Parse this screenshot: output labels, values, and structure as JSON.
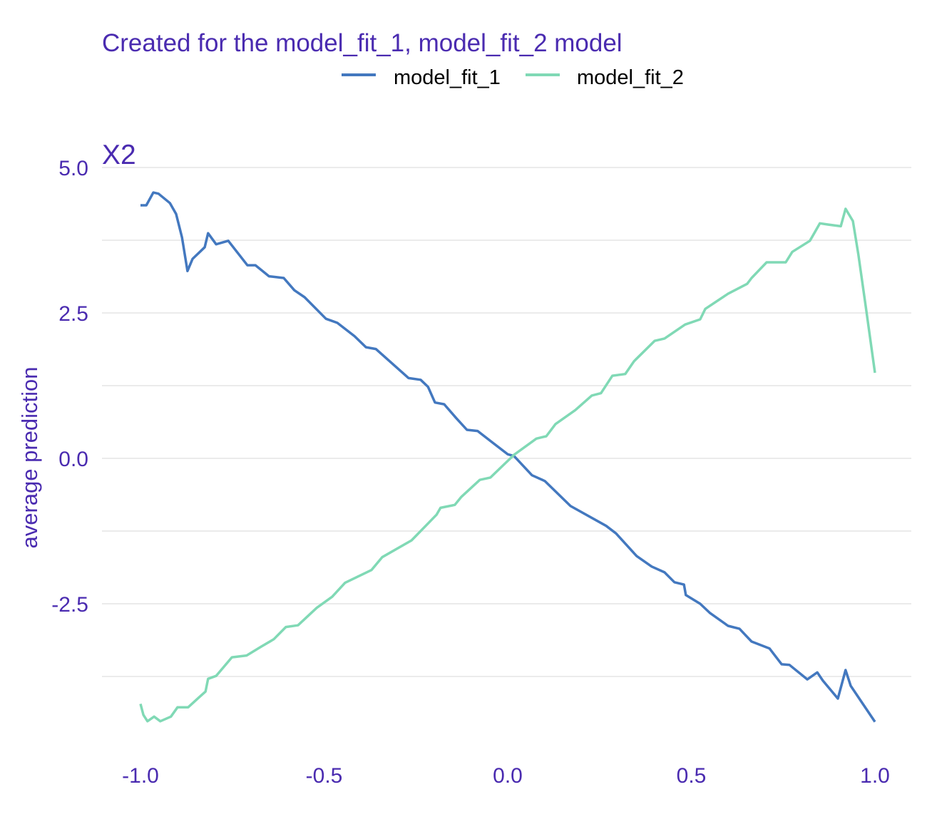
{
  "colors": {
    "text": "#4a2bb0",
    "grid": "#ebebeb",
    "model_fit_1": "#4378bf",
    "model_fit_2": "#80d9b5"
  },
  "chart_data": {
    "type": "line",
    "title": "Created for the model_fit_1, model_fit_2 model",
    "facet_label": "X2",
    "xlabel": "",
    "ylabel": "average prediction",
    "xlim": [
      -1.0,
      1.0
    ],
    "ylim": [
      -4.6,
      5.0
    ],
    "grid": true,
    "legend_position": "top",
    "x_ticks": [
      -1.0,
      -0.5,
      0.0,
      0.5,
      1.0
    ],
    "x_tick_labels": [
      "-1.0",
      "-0.5",
      "0.0",
      "0.5",
      "1.0"
    ],
    "y_ticks": [
      5.0,
      2.5,
      0.0,
      -2.5
    ],
    "y_tick_labels": [
      "5.0",
      "2.5",
      "0.0",
      "-2.5"
    ],
    "y_minor_grid": [
      3.75,
      1.25,
      -1.25,
      -3.75
    ],
    "series": [
      {
        "name": "model_fit_1",
        "x": [
          -1.0,
          -0.984,
          -0.965,
          -0.951,
          -0.92,
          -0.903,
          -0.887,
          -0.872,
          -0.858,
          -0.825,
          -0.816,
          -0.794,
          -0.761,
          -0.709,
          -0.687,
          -0.65,
          -0.61,
          -0.581,
          -0.553,
          -0.495,
          -0.464,
          -0.417,
          -0.386,
          -0.359,
          -0.27,
          -0.237,
          -0.217,
          -0.198,
          -0.173,
          -0.14,
          -0.111,
          -0.082,
          -0.043,
          0.0,
          0.017,
          0.066,
          0.101,
          0.171,
          0.268,
          0.295,
          0.351,
          0.392,
          0.427,
          0.454,
          0.48,
          0.485,
          0.524,
          0.551,
          0.6,
          0.631,
          0.664,
          0.713,
          0.746,
          0.767,
          0.816,
          0.843,
          0.858,
          0.899,
          0.92,
          0.934,
          1.0
        ],
        "y": [
          4.35,
          4.35,
          4.57,
          4.55,
          4.39,
          4.2,
          3.8,
          3.22,
          3.43,
          3.63,
          3.87,
          3.68,
          3.74,
          3.32,
          3.32,
          3.13,
          3.1,
          2.89,
          2.77,
          2.4,
          2.33,
          2.1,
          1.91,
          1.88,
          1.38,
          1.35,
          1.23,
          0.96,
          0.93,
          0.69,
          0.49,
          0.47,
          0.28,
          0.07,
          0.04,
          -0.29,
          -0.39,
          -0.82,
          -1.16,
          -1.29,
          -1.68,
          -1.86,
          -1.96,
          -2.13,
          -2.17,
          -2.35,
          -2.5,
          -2.66,
          -2.88,
          -2.93,
          -3.15,
          -3.27,
          -3.54,
          -3.55,
          -3.8,
          -3.68,
          -3.82,
          -4.13,
          -3.64,
          -3.91,
          -4.53
        ]
      },
      {
        "name": "model_fit_2",
        "x": [
          -1.0,
          -0.992,
          -0.981,
          -0.963,
          -0.946,
          -0.917,
          -0.899,
          -0.87,
          -0.837,
          -0.823,
          -0.816,
          -0.794,
          -0.751,
          -0.711,
          -0.672,
          -0.637,
          -0.604,
          -0.571,
          -0.52,
          -0.478,
          -0.443,
          -0.371,
          -0.342,
          -0.262,
          -0.194,
          -0.183,
          -0.144,
          -0.126,
          -0.076,
          -0.047,
          0.017,
          0.078,
          0.105,
          0.13,
          0.184,
          0.229,
          0.254,
          0.285,
          0.32,
          0.344,
          0.4,
          0.427,
          0.483,
          0.524,
          0.538,
          0.6,
          0.652,
          0.664,
          0.705,
          0.757,
          0.775,
          0.823,
          0.85,
          0.872,
          0.907,
          0.92,
          0.94,
          0.955,
          0.975,
          1.0
        ],
        "y": [
          -4.22,
          -4.41,
          -4.52,
          -4.44,
          -4.52,
          -4.44,
          -4.28,
          -4.28,
          -4.09,
          -4.01,
          -3.79,
          -3.74,
          -3.42,
          -3.39,
          -3.24,
          -3.11,
          -2.9,
          -2.87,
          -2.57,
          -2.38,
          -2.14,
          -1.92,
          -1.7,
          -1.41,
          -0.97,
          -0.85,
          -0.8,
          -0.66,
          -0.37,
          -0.33,
          0.06,
          0.34,
          0.38,
          0.59,
          0.83,
          1.08,
          1.12,
          1.42,
          1.45,
          1.67,
          2.02,
          2.06,
          2.3,
          2.39,
          2.57,
          2.83,
          3.0,
          3.1,
          3.37,
          3.37,
          3.55,
          3.74,
          4.04,
          4.02,
          3.99,
          4.29,
          4.08,
          3.5,
          2.61,
          1.47
        ]
      }
    ]
  }
}
